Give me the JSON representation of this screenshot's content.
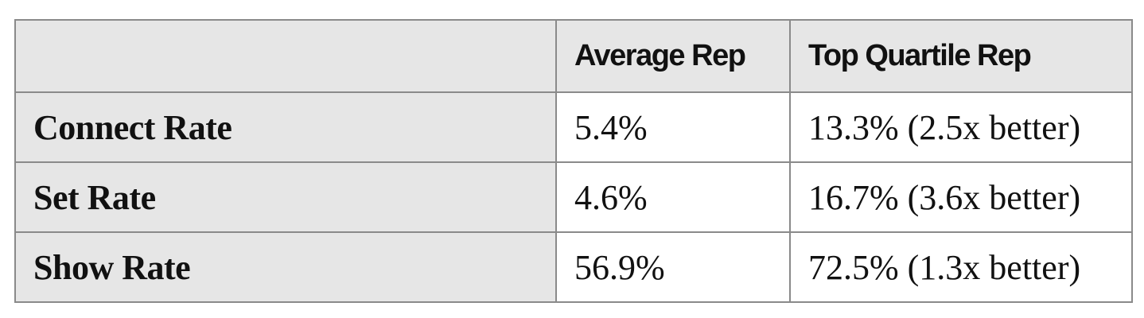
{
  "table": {
    "columns": [
      "Average Rep",
      "Top Quartile Rep"
    ],
    "rows": [
      [
        "Connect Rate",
        "5.4%",
        "13.3% (2.5x better)"
      ],
      [
        "Set Rate",
        "4.6%",
        "16.7% (3.6x better)"
      ],
      [
        "Show Rate",
        "56.9%",
        "72.5% (1.3x better)"
      ]
    ]
  }
}
